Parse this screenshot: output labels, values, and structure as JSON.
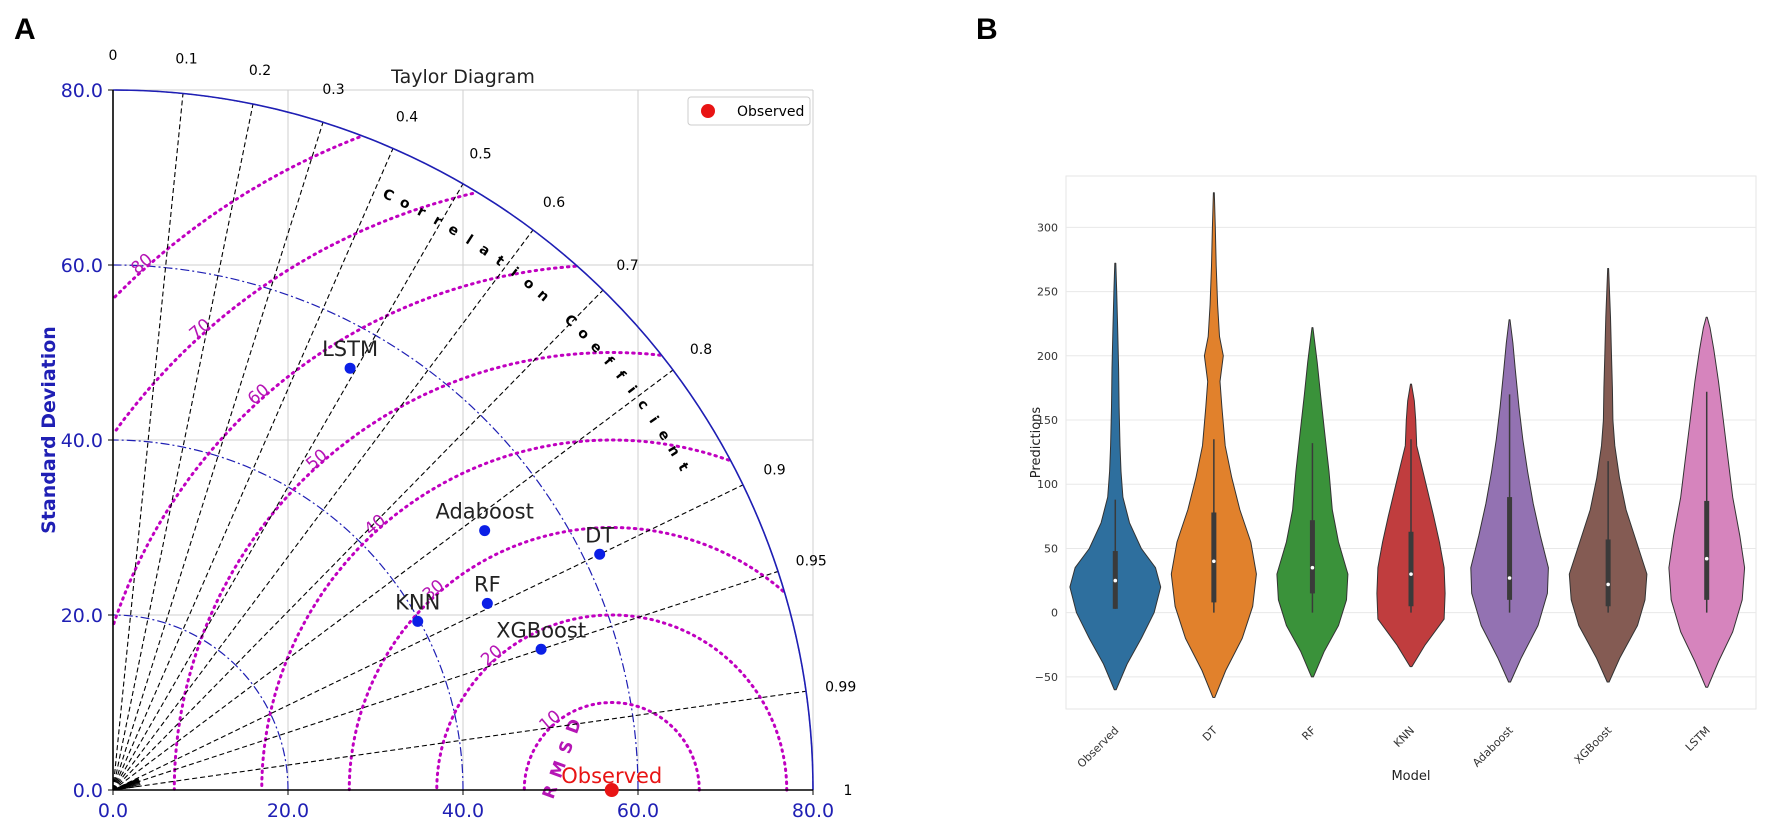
{
  "panels": {
    "a_label": "A",
    "b_label": "B"
  },
  "chart_data": [
    {
      "type": "taylor",
      "title": "Taylor Diagram",
      "ylabel": "Standard Deviation",
      "arc_label": "Correlation Coefficient",
      "rmsd_label": "RMSD",
      "std_range": [
        0,
        80
      ],
      "std_ticks": [
        0,
        20,
        40,
        60,
        80
      ],
      "std_tick_labels": [
        "0.0",
        "20.0",
        "40.0",
        "60.0",
        "80.0"
      ],
      "corr_ticks": [
        0,
        0.1,
        0.2,
        0.3,
        0.4,
        0.5,
        0.6,
        0.7,
        0.8,
        0.9,
        0.95,
        0.99,
        1
      ],
      "corr_tick_labels": [
        "0",
        "0.1",
        "0.2",
        "0.3",
        "0.4",
        "0.5",
        "0.6",
        "0.7",
        "0.8",
        "0.9",
        "0.95",
        "0.99",
        "1"
      ],
      "rmsd_contours": [
        10,
        20,
        30,
        40,
        50,
        60,
        70,
        80
      ],
      "rmsd_labels": [
        "10",
        "20",
        "30",
        "40",
        "50",
        "60",
        "70",
        "80"
      ],
      "legend": {
        "label": "Observed",
        "position": "top-right"
      },
      "observed": {
        "label": "Observed",
        "std": 57,
        "corr": 1,
        "color": "#e81414"
      },
      "models": [
        {
          "name": "LSTM",
          "std": 55.3,
          "corr": 0.49
        },
        {
          "name": "Adaboost",
          "std": 51.8,
          "corr": 0.82
        },
        {
          "name": "DT",
          "std": 61.8,
          "corr": 0.9
        },
        {
          "name": "RF",
          "std": 47.8,
          "corr": 0.895
        },
        {
          "name": "KNN",
          "std": 39.8,
          "corr": 0.875
        },
        {
          "name": "XGBoost",
          "std": 51.5,
          "corr": 0.95
        }
      ],
      "colors": {
        "point": "#0b1fe6",
        "axis": "#1f1fb4",
        "rmsd": "#c000c0",
        "grid": "#000000"
      }
    },
    {
      "type": "violin",
      "xlabel": "Model",
      "ylabel": "Predictions",
      "ylim": [
        -75,
        340
      ],
      "yticks": [
        -50,
        0,
        50,
        100,
        150,
        200,
        250,
        300
      ],
      "ytick_labels": [
        "−50",
        "0",
        "50",
        "100",
        "150",
        "200",
        "250",
        "300"
      ],
      "categories": [
        "Observed",
        "DT",
        "RF",
        "KNN",
        "Adaboost",
        "XGBoost",
        "LSTM"
      ],
      "series": [
        {
          "name": "Observed",
          "color": "#2e6f9e",
          "min": -60,
          "max": 272,
          "q1": 3,
          "median": 25,
          "q3": 48,
          "wlo": 3,
          "whi": 88,
          "widths": [
            [
              -60,
              0.02
            ],
            [
              -40,
              0.25
            ],
            [
              -20,
              0.55
            ],
            [
              0,
              0.82
            ],
            [
              20,
              0.96
            ],
            [
              35,
              0.85
            ],
            [
              50,
              0.55
            ],
            [
              70,
              0.3
            ],
            [
              90,
              0.16
            ],
            [
              110,
              0.12
            ],
            [
              130,
              0.1
            ],
            [
              160,
              0.08
            ],
            [
              190,
              0.07
            ],
            [
              220,
              0.05
            ],
            [
              250,
              0.03
            ],
            [
              272,
              0.01
            ]
          ]
        },
        {
          "name": "DT",
          "color": "#e1812c",
          "min": -66,
          "max": 327,
          "q1": 8,
          "median": 40,
          "q3": 78,
          "wlo": 0,
          "whi": 135,
          "widths": [
            [
              -66,
              0.02
            ],
            [
              -45,
              0.25
            ],
            [
              -20,
              0.6
            ],
            [
              5,
              0.82
            ],
            [
              30,
              0.9
            ],
            [
              55,
              0.78
            ],
            [
              80,
              0.55
            ],
            [
              105,
              0.38
            ],
            [
              130,
              0.24
            ],
            [
              160,
              0.17
            ],
            [
              180,
              0.13
            ],
            [
              200,
              0.2
            ],
            [
              215,
              0.12
            ],
            [
              240,
              0.08
            ],
            [
              270,
              0.05
            ],
            [
              300,
              0.03
            ],
            [
              327,
              0.01
            ]
          ]
        },
        {
          "name": "RF",
          "color": "#3a923a",
          "min": -50,
          "max": 222,
          "q1": 15,
          "median": 35,
          "q3": 72,
          "wlo": 0,
          "whi": 132,
          "widths": [
            [
              -50,
              0.02
            ],
            [
              -30,
              0.25
            ],
            [
              -10,
              0.55
            ],
            [
              10,
              0.72
            ],
            [
              30,
              0.75
            ],
            [
              55,
              0.55
            ],
            [
              80,
              0.42
            ],
            [
              110,
              0.35
            ],
            [
              140,
              0.26
            ],
            [
              170,
              0.17
            ],
            [
              195,
              0.1
            ],
            [
              222,
              0.01
            ]
          ]
        },
        {
          "name": "KNN",
          "color": "#c03d3e",
          "min": -42,
          "max": 178,
          "q1": 5,
          "median": 30,
          "q3": 63,
          "wlo": 0,
          "whi": 135,
          "widths": [
            [
              -42,
              0.02
            ],
            [
              -25,
              0.3
            ],
            [
              -5,
              0.7
            ],
            [
              15,
              0.72
            ],
            [
              35,
              0.7
            ],
            [
              55,
              0.6
            ],
            [
              75,
              0.48
            ],
            [
              95,
              0.35
            ],
            [
              115,
              0.22
            ],
            [
              130,
              0.12
            ],
            [
              150,
              0.1
            ],
            [
              165,
              0.07
            ],
            [
              178,
              0.01
            ]
          ]
        },
        {
          "name": "Adaboost",
          "color": "#9372b2",
          "min": -54,
          "max": 228,
          "q1": 10,
          "median": 27,
          "q3": 90,
          "wlo": 0,
          "whi": 170,
          "widths": [
            [
              -54,
              0.02
            ],
            [
              -35,
              0.25
            ],
            [
              -10,
              0.6
            ],
            [
              15,
              0.8
            ],
            [
              35,
              0.82
            ],
            [
              60,
              0.65
            ],
            [
              85,
              0.5
            ],
            [
              110,
              0.38
            ],
            [
              135,
              0.28
            ],
            [
              160,
              0.2
            ],
            [
              190,
              0.12
            ],
            [
              210,
              0.07
            ],
            [
              228,
              0.01
            ]
          ]
        },
        {
          "name": "XGBoost",
          "color": "#845b53",
          "min": -54,
          "max": 268,
          "q1": 5,
          "median": 22,
          "q3": 57,
          "wlo": 0,
          "whi": 118,
          "widths": [
            [
              -54,
              0.02
            ],
            [
              -35,
              0.25
            ],
            [
              -10,
              0.62
            ],
            [
              10,
              0.78
            ],
            [
              30,
              0.82
            ],
            [
              55,
              0.6
            ],
            [
              80,
              0.38
            ],
            [
              105,
              0.24
            ],
            [
              130,
              0.14
            ],
            [
              150,
              0.1
            ],
            [
              175,
              0.09
            ],
            [
              200,
              0.07
            ],
            [
              230,
              0.05
            ],
            [
              268,
              0.01
            ]
          ]
        },
        {
          "name": "LSTM",
          "color": "#d684bd",
          "min": -58,
          "max": 230,
          "q1": 10,
          "median": 42,
          "q3": 87,
          "wlo": 0,
          "whi": 172,
          "widths": [
            [
              -58,
              0.02
            ],
            [
              -38,
              0.25
            ],
            [
              -15,
              0.55
            ],
            [
              10,
              0.75
            ],
            [
              35,
              0.8
            ],
            [
              60,
              0.7
            ],
            [
              90,
              0.55
            ],
            [
              120,
              0.45
            ],
            [
              150,
              0.35
            ],
            [
              180,
              0.25
            ],
            [
              205,
              0.15
            ],
            [
              222,
              0.07
            ],
            [
              230,
              0.01
            ]
          ]
        }
      ]
    }
  ]
}
